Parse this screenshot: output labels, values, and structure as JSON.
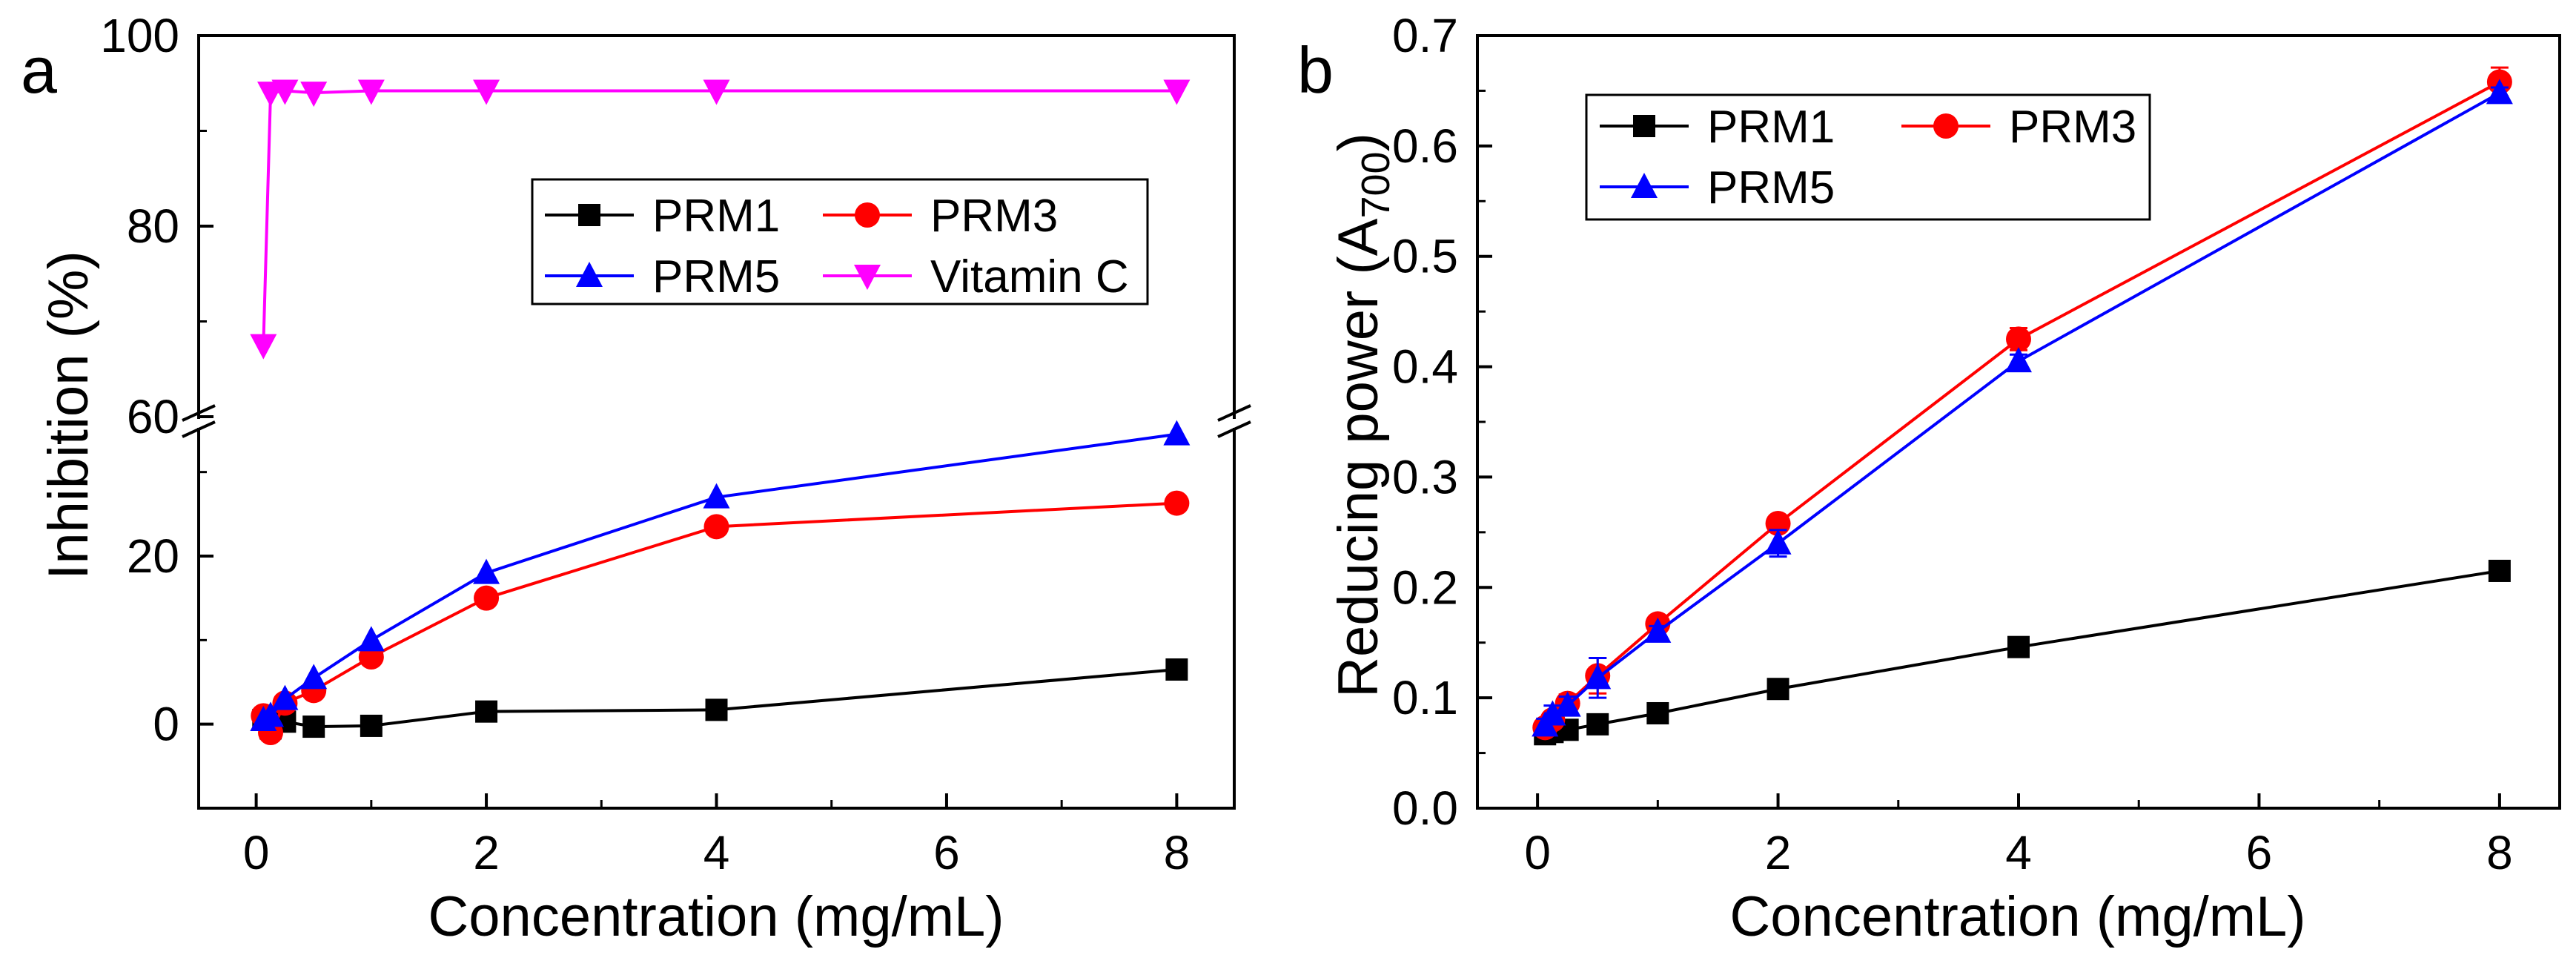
{
  "chart_data": [
    {
      "panel_label": "a",
      "type": "line",
      "xlabel": "Concentration (mg/mL)",
      "ylabel": "Inhibition (%)",
      "x_ticks": [
        "0",
        "2",
        "4",
        "6",
        "8"
      ],
      "xlim": [
        -0.5,
        8.5
      ],
      "y_break": {
        "lower": [
          -10,
          35
        ],
        "upper": [
          60,
          100
        ]
      },
      "y_ticks": [
        "0",
        "20",
        "60",
        "80",
        "100"
      ],
      "x": [
        0.0625,
        0.125,
        0.25,
        0.5,
        1,
        2,
        4,
        8
      ],
      "series": [
        {
          "name": "PRM1",
          "color": "#000000",
          "marker": "square",
          "values": [
            0.5,
            -0.5,
            0.3,
            -0.3,
            -0.2,
            1.5,
            1.7,
            6.5
          ]
        },
        {
          "name": "PRM3",
          "color": "#ff0000",
          "marker": "circle",
          "values": [
            1.0,
            -1.0,
            2.5,
            4.0,
            8.0,
            15.0,
            23.5,
            26.3
          ]
        },
        {
          "name": "PRM5",
          "color": "#0000ff",
          "marker": "triangle-up",
          "values": [
            0.5,
            1.0,
            3.0,
            5.5,
            10.0,
            18.0,
            27.0,
            34.5
          ]
        },
        {
          "name": "Vitamin C",
          "color": "#ff00ff",
          "marker": "triangle-down",
          "values": [
            67.5,
            94.0,
            94.2,
            94.0,
            94.2,
            94.2,
            94.2,
            94.2
          ]
        }
      ],
      "legend": {
        "entries": [
          "PRM1",
          "PRM3",
          "PRM5",
          "Vitamin C"
        ]
      }
    },
    {
      "panel_label": "b",
      "type": "line",
      "xlabel": "Concentration (mg/mL)",
      "ylabel": "Reducing power (A",
      "ylabel_sub": "700",
      "ylabel_end": ")",
      "x_ticks": [
        "0",
        "2",
        "4",
        "6",
        "8"
      ],
      "y_ticks": [
        "0.0",
        "0.1",
        "0.2",
        "0.3",
        "0.4",
        "0.5",
        "0.6",
        "0.7"
      ],
      "xlim": [
        -0.5,
        8.5
      ],
      "ylim": [
        0.0,
        0.7
      ],
      "x": [
        0.0625,
        0.125,
        0.25,
        0.5,
        1,
        2,
        4,
        8
      ],
      "series": [
        {
          "name": "PRM1",
          "color": "#000000",
          "marker": "square",
          "values": [
            0.067,
            0.069,
            0.071,
            0.076,
            0.086,
            0.108,
            0.146,
            0.215
          ],
          "errors": [
            0.003,
            0.003,
            0.003,
            0.003,
            0.003,
            0.003,
            0.003,
            0.003
          ]
        },
        {
          "name": "PRM3",
          "color": "#ff0000",
          "marker": "circle",
          "values": [
            0.073,
            0.08,
            0.095,
            0.12,
            0.167,
            0.258,
            0.425,
            0.658
          ],
          "errors": [
            0.005,
            0.006,
            0.008,
            0.016,
            0.005,
            0.006,
            0.01,
            0.013
          ]
        },
        {
          "name": "PRM5",
          "color": "#0000ff",
          "marker": "triangle-up",
          "values": [
            0.075,
            0.085,
            0.093,
            0.118,
            0.16,
            0.24,
            0.405,
            0.648
          ],
          "errors": [
            0.006,
            0.008,
            0.008,
            0.018,
            0.005,
            0.012,
            0.006,
            0.005
          ]
        }
      ],
      "legend": {
        "entries": [
          "PRM1",
          "PRM3",
          "PRM5"
        ]
      }
    }
  ]
}
